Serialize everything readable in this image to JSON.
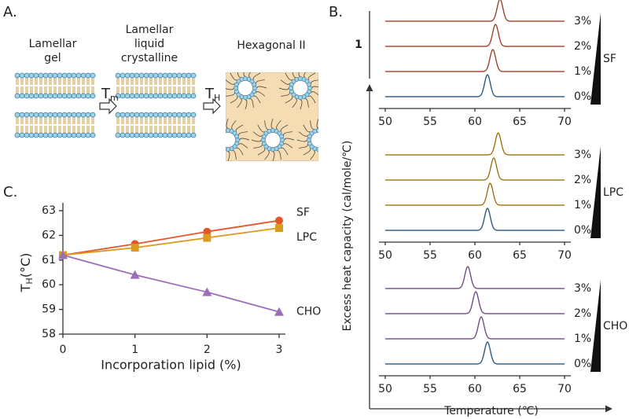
{
  "panel_a": {
    "label": "A.",
    "stages": [
      [
        "Lamellar",
        "gel"
      ],
      [
        "Lamellar",
        "liquid",
        "crystalline"
      ],
      [
        "Hexagonal II"
      ]
    ],
    "transitions": [
      {
        "main": "T",
        "sub": "m"
      },
      {
        "main": "T",
        "sub": "H"
      }
    ]
  },
  "chart_data": [
    {
      "type": "line",
      "label": "C.",
      "xlabel": "Incorporation lipid (%)",
      "ylabel": {
        "main": "T",
        "sub": "H",
        "unit": "(°C)"
      },
      "x": [
        0,
        1,
        2,
        3
      ],
      "xlim": [
        0,
        3
      ],
      "xticks": [
        0,
        1,
        2,
        3
      ],
      "ylim": [
        58,
        63
      ],
      "yticks": [
        58,
        59,
        60,
        61,
        62,
        63
      ],
      "series": [
        {
          "name": "SF",
          "color": "#e3552b",
          "marker": "circle",
          "values": [
            61.2,
            61.65,
            62.15,
            62.6
          ]
        },
        {
          "name": "LPC",
          "color": "#dc9a1e",
          "marker": "square",
          "values": [
            61.2,
            61.5,
            61.9,
            62.3
          ]
        },
        {
          "name": "CHO",
          "color": "#9b6fb8",
          "marker": "triangle",
          "values": [
            61.2,
            60.4,
            59.7,
            58.9
          ]
        }
      ]
    },
    {
      "type": "dsc",
      "label": "B.",
      "ylabel": "Excess heat capacity (cal/mole/℃)",
      "xlabel": "Temperature (℃)",
      "scale_bar": 1,
      "xlim": [
        50,
        70
      ],
      "xticks": [
        50,
        55,
        60,
        65,
        70
      ],
      "groups": [
        {
          "name": "SF",
          "series": [
            {
              "name": "3%",
              "color": "#d9603b",
              "peak": 62.8
            },
            {
              "name": "2%",
              "color": "#d9603b",
              "peak": 62.3
            },
            {
              "name": "1%",
              "color": "#d9603b",
              "peak": 62.0
            },
            {
              "name": "0%",
              "color": "#3d7fb5",
              "peak": 61.4
            }
          ]
        },
        {
          "name": "LPC",
          "series": [
            {
              "name": "3%",
              "color": "#d9a21b",
              "peak": 62.6
            },
            {
              "name": "2%",
              "color": "#d9a21b",
              "peak": 62.1
            },
            {
              "name": "1%",
              "color": "#d9a21b",
              "peak": 61.7
            },
            {
              "name": "0%",
              "color": "#3d7fb5",
              "peak": 61.4
            }
          ]
        },
        {
          "name": "CHO",
          "series": [
            {
              "name": "3%",
              "color": "#9b6fb8",
              "peak": 59.2
            },
            {
              "name": "2%",
              "color": "#9b6fb8",
              "peak": 60.1
            },
            {
              "name": "1%",
              "color": "#9b6fb8",
              "peak": 60.7
            },
            {
              "name": "0%",
              "color": "#3d7fb5",
              "peak": 61.4
            }
          ]
        }
      ]
    }
  ]
}
